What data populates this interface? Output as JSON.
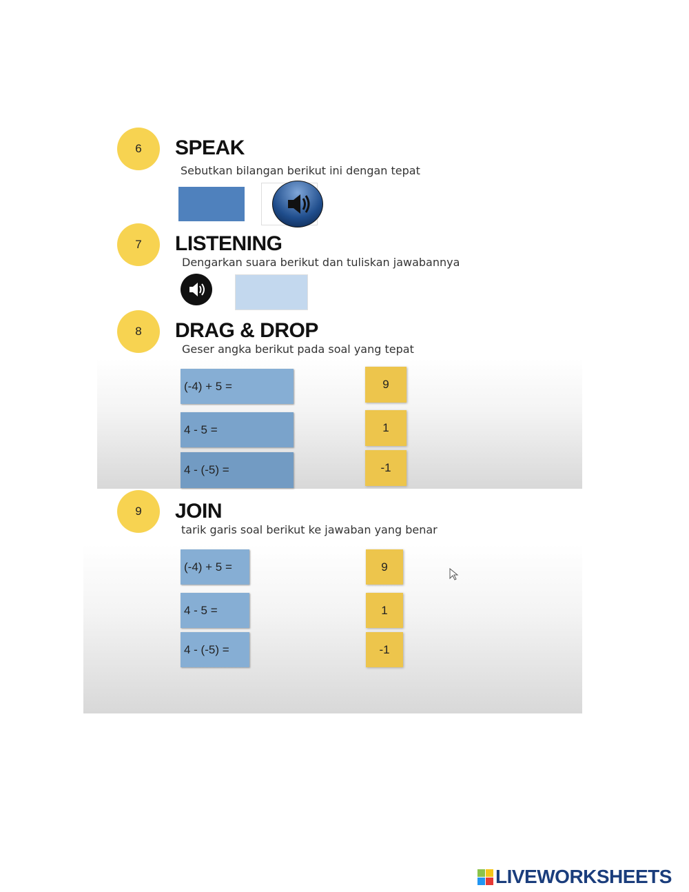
{
  "sections": [
    {
      "number": "6",
      "title": "SPEAK",
      "instruction": "Sebutkan bilangan berikut ini dengan tepat"
    },
    {
      "number": "7",
      "title": "LISTENING",
      "instruction": "Dengarkan suara berikut dan tuliskan jawabannya"
    },
    {
      "number": "8",
      "title": "DRAG & DROP",
      "instruction": "Geser angka berikut pada soal yang tepat"
    },
    {
      "number": "9",
      "title": "JOIN",
      "instruction": "tarik garis soal berikut ke jawaban yang benar"
    }
  ],
  "drag": {
    "questions": [
      "(-4) + 5 =",
      "4 - 5 =",
      "4 - (-5) ="
    ],
    "answers": [
      "9",
      "1",
      "-1"
    ]
  },
  "join": {
    "questions": [
      "(-4) + 5 =",
      "4 - 5 =",
      "4 - (-5) ="
    ],
    "answers": [
      "9",
      "1",
      "-1"
    ]
  },
  "logo": "LIVEWORKSHEETS",
  "colors": {
    "badge": "#f7d351",
    "question": "#86aed4",
    "answer": "#edc54c",
    "logo": "#1a3d7c"
  },
  "icons": [
    "speaker-icon",
    "cursor-icon"
  ]
}
